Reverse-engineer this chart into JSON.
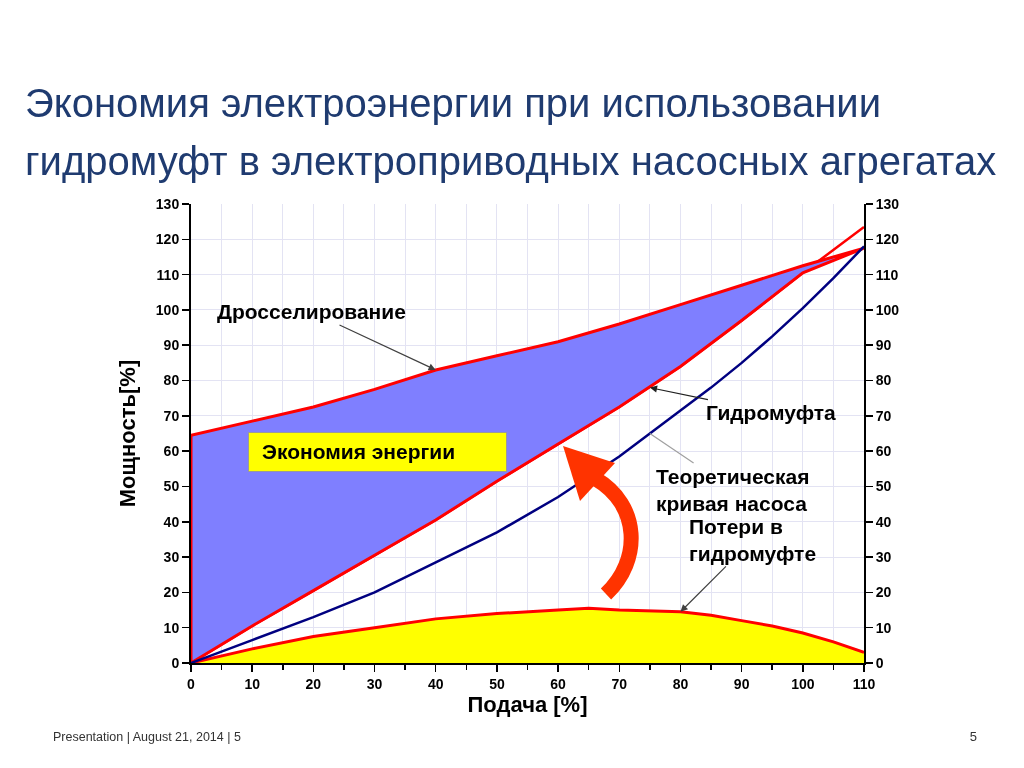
{
  "chart_data": {
    "type": "line",
    "title": "Экономия электроэнергии при использовании гидромуфт в электроприводных насосных агрегатах",
    "xlabel": "Подача [%]",
    "ylabel": "Мощность[%]",
    "xlim": [
      0,
      110
    ],
    "xticks": [
      0,
      {
        "value": 5,
        "label": null
      },
      10,
      {
        "value": 15,
        "label": null
      },
      20,
      {
        "value": 25,
        "label": null
      },
      30,
      {
        "value": 35,
        "label": null
      },
      40,
      {
        "value": 45,
        "label": null
      },
      50,
      {
        "value": 55,
        "label": null
      },
      60,
      {
        "value": 65,
        "label": null
      },
      70,
      {
        "value": 75,
        "label": null
      },
      80,
      {
        "value": 85,
        "label": null
      },
      90,
      {
        "value": 95,
        "label": null
      },
      100,
      {
        "value": 105,
        "label": null
      },
      110
    ],
    "ylim": [
      0,
      130
    ],
    "yticks": [
      0,
      10,
      20,
      30,
      40,
      50,
      60,
      70,
      80,
      90,
      100,
      110,
      120,
      130
    ],
    "y2lim": [
      0,
      130
    ],
    "y2ticks": [
      0,
      10,
      20,
      30,
      40,
      50,
      60,
      70,
      80,
      90,
      100,
      110,
      120,
      130
    ],
    "grid": true,
    "series": [
      {
        "type": "area",
        "color": "#ffff00",
        "x": [
          0,
          10,
          20,
          30,
          40,
          50,
          60,
          65,
          70,
          80,
          85,
          90,
          95,
          100,
          105,
          110
        ],
        "values": [
          0,
          4,
          7.5,
          10,
          12.5,
          14,
          15,
          15.5,
          15,
          14.5,
          13.5,
          12,
          10.5,
          8.5,
          6,
          3
        ]
      },
      {
        "type": "line",
        "color": "#ff0000",
        "x": [
          0,
          10,
          20,
          30,
          40,
          50,
          60,
          70,
          80,
          90,
          100,
          110
        ],
        "values": [
          0,
          10.5,
          20.5,
          30.5,
          40.5,
          51.5,
          62,
          72.5,
          84,
          97,
          110.5,
          123.5
        ]
      },
      {
        "type": "area",
        "color": "#7f7fff",
        "x": [
          0,
          0,
          10,
          20,
          30,
          40,
          50,
          60,
          70,
          80,
          90,
          100,
          110
        ],
        "values": [
          0,
          64.5,
          68.5,
          72.5,
          77.5,
          83,
          87,
          91,
          96,
          101.5,
          107,
          112.5,
          117.5
        ]
      },
      {
        "type": "line",
        "color": "#000080",
        "x": [
          0,
          10,
          20,
          30,
          40,
          50,
          60,
          70,
          75,
          80,
          85,
          90,
          95,
          100,
          105,
          110
        ],
        "values": [
          0,
          6.5,
          13,
          20,
          28.5,
          37,
          47,
          58.5,
          65,
          71.5,
          78,
          85,
          92.5,
          100.5,
          109,
          118
        ]
      }
    ],
    "annotations": [
      {
        "text": "Дросселирование",
        "x": 40,
        "y": 83
      },
      {
        "text": "Гидромуфта",
        "x": 75,
        "y": 78
      },
      {
        "text": "Теоретическая кривая насоса",
        "x": 75,
        "y": 65
      },
      {
        "text": "Потери в гидромуфте",
        "x": 80,
        "y": 14.5
      },
      "Экономия энергии",
      "Presentation | August 21, 2014 | 5",
      "5"
    ]
  }
}
